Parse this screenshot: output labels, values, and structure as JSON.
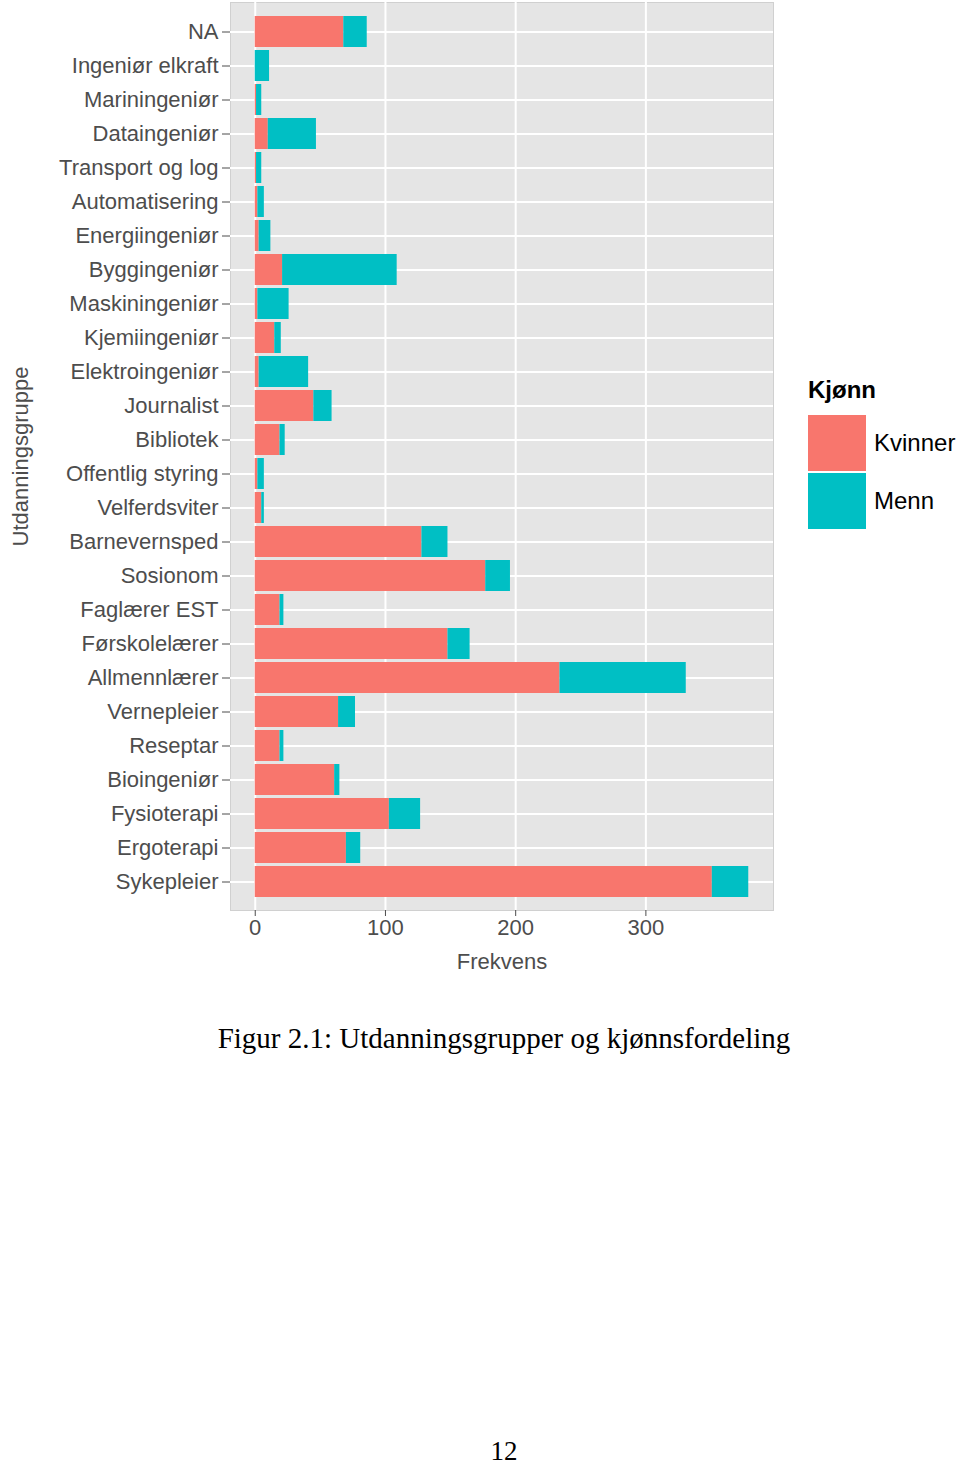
{
  "chart_data": {
    "type": "bar",
    "orientation": "horizontal",
    "stacked": true,
    "grid": true,
    "legend": "right",
    "legend_title": "Kjønn",
    "xlabel": "Frekvens",
    "ylabel": "Utdanningsgruppe",
    "caption": "Figur 2.1: Utdanningsgrupper og kjønnsfordeling",
    "page": "12",
    "xlim": [
      -19,
      398
    ],
    "xticks": [
      0,
      100,
      200,
      300
    ],
    "categories": [
      "NA",
      "Ingeniør elkraft",
      "Mariningeniør",
      "Dataingeniør",
      "Transport og log",
      "Automatisering",
      "Energiingeniør",
      "Byggingeniør",
      "Maskiningeniør",
      "Kjemiingeniør",
      "Elektroingeniør",
      "Journalist",
      "Bibliotek",
      "Offentlig styring",
      "Velferdsviter",
      "Barnevernsped",
      "Sosionom",
      "Faglærer EST",
      "Førskolelærer",
      "Allmennlærer",
      "Vernepleier",
      "Reseptar",
      "Bioingeniør",
      "Fysioterapi",
      "Ergoterapi",
      "Sykepleier"
    ],
    "series": [
      {
        "name": "Kvinner",
        "color": "#f8766d",
        "values": [
          68,
          0,
          1,
          10,
          1,
          2,
          3,
          21,
          2,
          15,
          3,
          45,
          19,
          2,
          5,
          128,
          177,
          19,
          148,
          234,
          64,
          19,
          61,
          103,
          70,
          351
        ]
      },
      {
        "name": "Menn",
        "color": "#00bfc4",
        "values": [
          18,
          11,
          4,
          37,
          4,
          5,
          9,
          88,
          24,
          5,
          38,
          14,
          4,
          5,
          2,
          20,
          19,
          3,
          17,
          97,
          13,
          3,
          4,
          24,
          11,
          28
        ]
      }
    ]
  }
}
